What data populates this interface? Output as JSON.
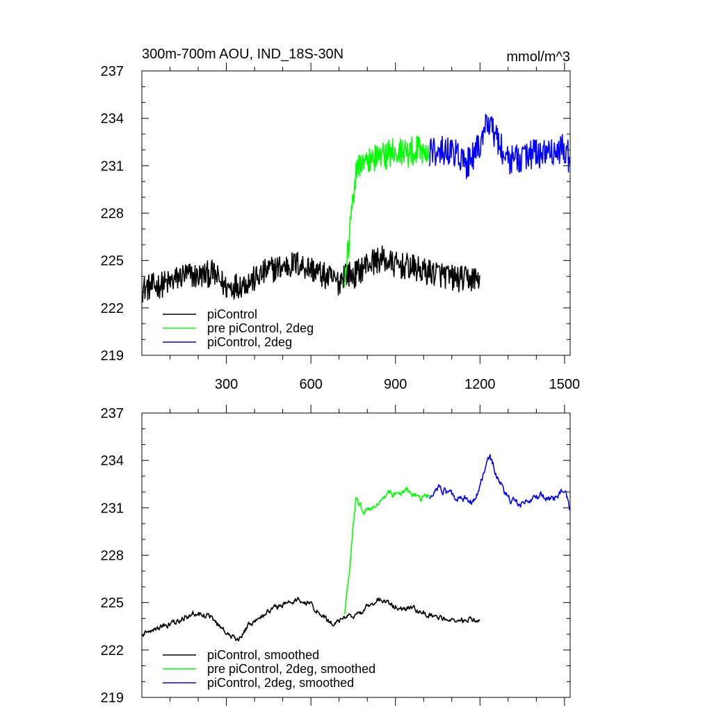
{
  "chart_data": [
    {
      "type": "line",
      "title": "300m-700m AOU, IND_18S-30N",
      "units": "mmol/m^3",
      "xlim": [
        0,
        1520
      ],
      "ylim": [
        219,
        237
      ],
      "yticks": [
        219,
        222,
        225,
        228,
        231,
        234,
        237
      ],
      "xticks": [
        300,
        600,
        900,
        1200,
        1500
      ],
      "show_xtick_labels": true,
      "legend_position": "bottom-left",
      "series": [
        {
          "name": "piControl",
          "color": "#000000",
          "x_start": 1,
          "x_end": 1200,
          "mean": 223.9,
          "noise": 0.85,
          "anchors": [
            [
              1,
              223.2
            ],
            [
              50,
              223.4
            ],
            [
              100,
              223.6
            ],
            [
              150,
              224.1
            ],
            [
              200,
              224.0
            ],
            [
              250,
              224.2
            ],
            [
              300,
              223.3
            ],
            [
              350,
              223.5
            ],
            [
              400,
              223.8
            ],
            [
              450,
              224.4
            ],
            [
              500,
              224.6
            ],
            [
              550,
              224.8
            ],
            [
              600,
              224.5
            ],
            [
              650,
              224.0
            ],
            [
              700,
              223.6
            ],
            [
              720,
              224.3
            ],
            [
              750,
              224.0
            ],
            [
              800,
              224.8
            ],
            [
              850,
              225.1
            ],
            [
              900,
              224.7
            ],
            [
              950,
              224.6
            ],
            [
              1000,
              224.3
            ],
            [
              1050,
              224.2
            ],
            [
              1100,
              223.9
            ],
            [
              1150,
              223.8
            ],
            [
              1200,
              223.9
            ]
          ]
        },
        {
          "name": "pre piControl, 2deg",
          "color": "#00ff00",
          "x_start": 720,
          "x_end": 1020,
          "noise": 0.95,
          "anchors": [
            [
              720,
              224.2
            ],
            [
              735,
              226.0
            ],
            [
              745,
              228.6
            ],
            [
              760,
              230.7
            ],
            [
              780,
              231.0
            ],
            [
              820,
              231.5
            ],
            [
              860,
              231.6
            ],
            [
              900,
              232.0
            ],
            [
              940,
              231.8
            ],
            [
              980,
              232.1
            ],
            [
              1020,
              231.9
            ]
          ]
        },
        {
          "name": "piControl, 2deg",
          "color": "#0000ff",
          "x_start": 1020,
          "x_end": 1520,
          "noise": 1.0,
          "anchors": [
            [
              1020,
              231.9
            ],
            [
              1060,
              232.0
            ],
            [
              1100,
              231.9
            ],
            [
              1150,
              231.0
            ],
            [
              1180,
              231.7
            ],
            [
              1210,
              232.8
            ],
            [
              1235,
              234.0
            ],
            [
              1260,
              232.6
            ],
            [
              1300,
              231.4
            ],
            [
              1350,
              231.6
            ],
            [
              1400,
              231.8
            ],
            [
              1450,
              231.6
            ],
            [
              1500,
              232.2
            ],
            [
              1520,
              231.3
            ]
          ]
        }
      ]
    },
    {
      "type": "line",
      "title": "",
      "units": "",
      "xlim": [
        0,
        1520
      ],
      "ylim": [
        219,
        237
      ],
      "yticks": [
        219,
        222,
        225,
        228,
        231,
        234,
        237
      ],
      "xticks": [
        300,
        600,
        900,
        1200,
        1500
      ],
      "show_xtick_labels": false,
      "legend_position": "bottom-left",
      "series": [
        {
          "name": "piControl, smoothed",
          "color": "#000000",
          "x_start": 1,
          "x_end": 1200,
          "noise": 0.35,
          "anchors": [
            [
              1,
              223.1
            ],
            [
              60,
              223.4
            ],
            [
              120,
              223.8
            ],
            [
              180,
              224.3
            ],
            [
              240,
              224.2
            ],
            [
              300,
              223.1
            ],
            [
              340,
              222.6
            ],
            [
              380,
              223.6
            ],
            [
              420,
              224.0
            ],
            [
              460,
              224.6
            ],
            [
              500,
              224.9
            ],
            [
              560,
              225.2
            ],
            [
              600,
              224.9
            ],
            [
              640,
              224.2
            ],
            [
              680,
              223.6
            ],
            [
              720,
              224.1
            ],
            [
              760,
              224.1
            ],
            [
              800,
              224.7
            ],
            [
              840,
              225.3
            ],
            [
              880,
              224.9
            ],
            [
              920,
              224.7
            ],
            [
              960,
              224.6
            ],
            [
              1000,
              224.3
            ],
            [
              1050,
              224.1
            ],
            [
              1100,
              223.8
            ],
            [
              1150,
              223.9
            ],
            [
              1200,
              223.9
            ]
          ]
        },
        {
          "name": "pre piControl, 2deg, smoothed",
          "color": "#00ff00",
          "x_start": 720,
          "x_end": 1020,
          "noise": 0.4,
          "anchors": [
            [
              720,
              224.4
            ],
            [
              735,
              226.5
            ],
            [
              748,
              229.5
            ],
            [
              760,
              231.5
            ],
            [
              790,
              230.8
            ],
            [
              830,
              231.2
            ],
            [
              870,
              231.9
            ],
            [
              910,
              231.8
            ],
            [
              950,
              232.1
            ],
            [
              990,
              231.6
            ],
            [
              1020,
              231.8
            ]
          ]
        },
        {
          "name": "piControl, 2deg, smoothed",
          "color": "#0000ff",
          "x_start": 1020,
          "x_end": 1520,
          "noise": 0.45,
          "anchors": [
            [
              1020,
              231.8
            ],
            [
              1060,
              232.2
            ],
            [
              1100,
              231.8
            ],
            [
              1140,
              231.6
            ],
            [
              1180,
              231.4
            ],
            [
              1210,
              233.0
            ],
            [
              1235,
              234.3
            ],
            [
              1260,
              233.1
            ],
            [
              1300,
              231.6
            ],
            [
              1340,
              231.2
            ],
            [
              1380,
              231.6
            ],
            [
              1420,
              231.8
            ],
            [
              1460,
              231.4
            ],
            [
              1500,
              232.3
            ],
            [
              1520,
              230.9
            ]
          ]
        }
      ]
    }
  ]
}
